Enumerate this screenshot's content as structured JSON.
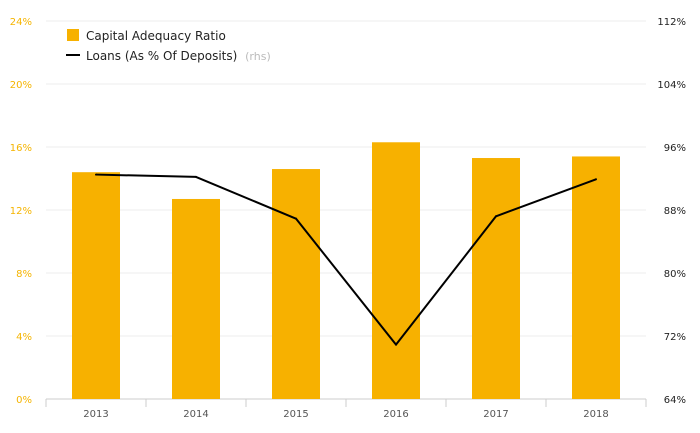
{
  "chart_data": {
    "type": "bar",
    "categories": [
      "2013",
      "2014",
      "2015",
      "2016",
      "2017",
      "2018"
    ],
    "series": [
      {
        "name": "Capital Adequacy Ratio",
        "type": "bar",
        "axis": "left",
        "color": "#f7b100",
        "values": [
          14.4,
          12.7,
          14.6,
          16.3,
          15.3,
          15.4
        ]
      },
      {
        "name": "Loans (As % Of Deposits)",
        "type": "line",
        "axis": "right",
        "color": "#000000",
        "values": [
          92.5,
          92.2,
          86.9,
          70.9,
          87.2,
          91.9
        ]
      }
    ],
    "legend_suffix": "(rhs)",
    "left_axis": {
      "ylim": [
        0,
        24
      ],
      "ticks": [
        "0%",
        "4%",
        "8%",
        "12%",
        "16%",
        "20%",
        "24%"
      ],
      "color": "#f5b400"
    },
    "right_axis": {
      "ylim": [
        64,
        112
      ],
      "ticks": [
        "64%",
        "72%",
        "80%",
        "88%",
        "96%",
        "104%",
        "112%"
      ],
      "color": "#222222"
    },
    "grid": true,
    "legend_position": "top-left"
  }
}
